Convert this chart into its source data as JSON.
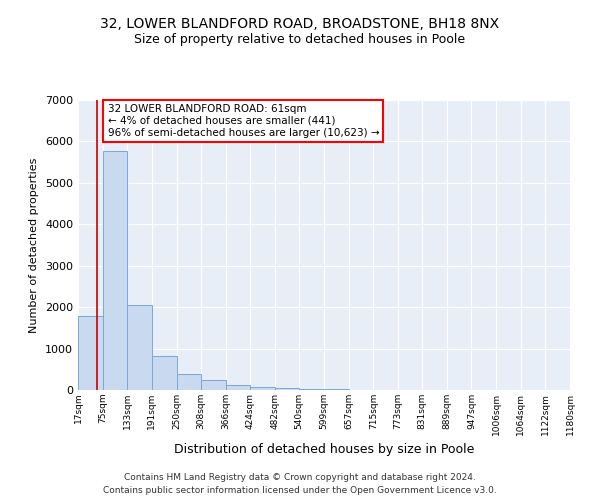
{
  "title": "32, LOWER BLANDFORD ROAD, BROADSTONE, BH18 8NX",
  "subtitle": "Size of property relative to detached houses in Poole",
  "xlabel": "Distribution of detached houses by size in Poole",
  "ylabel": "Number of detached properties",
  "footer_line1": "Contains HM Land Registry data © Crown copyright and database right 2024.",
  "footer_line2": "Contains public sector information licensed under the Open Government Licence v3.0.",
  "annotation_line1": "32 LOWER BLANDFORD ROAD: 61sqm",
  "annotation_line2": "← 4% of detached houses are smaller (441)",
  "annotation_line3": "96% of semi-detached houses are larger (10,623) →",
  "bar_color": "#c8d9f0",
  "bar_edge_color": "#7aa8d8",
  "red_line_color": "#cc0000",
  "property_size": 61,
  "bin_edges": [
    17,
    75,
    133,
    191,
    250,
    308,
    366,
    424,
    482,
    540,
    599,
    657,
    715,
    773,
    831,
    889,
    947,
    1006,
    1064,
    1122,
    1180
  ],
  "bin_labels": [
    "17sqm",
    "75sqm",
    "133sqm",
    "191sqm",
    "250sqm",
    "308sqm",
    "366sqm",
    "424sqm",
    "482sqm",
    "540sqm",
    "599sqm",
    "657sqm",
    "715sqm",
    "773sqm",
    "831sqm",
    "889sqm",
    "947sqm",
    "1006sqm",
    "1064sqm",
    "1122sqm",
    "1180sqm"
  ],
  "counts": [
    1780,
    5760,
    2050,
    830,
    380,
    240,
    110,
    80,
    55,
    20,
    15,
    5,
    3,
    0,
    0,
    0,
    0,
    0,
    0,
    0
  ],
  "ylim": [
    0,
    7000
  ],
  "yticks": [
    0,
    1000,
    2000,
    3000,
    4000,
    5000,
    6000,
    7000
  ],
  "plot_bg_color": "#e8eef8"
}
